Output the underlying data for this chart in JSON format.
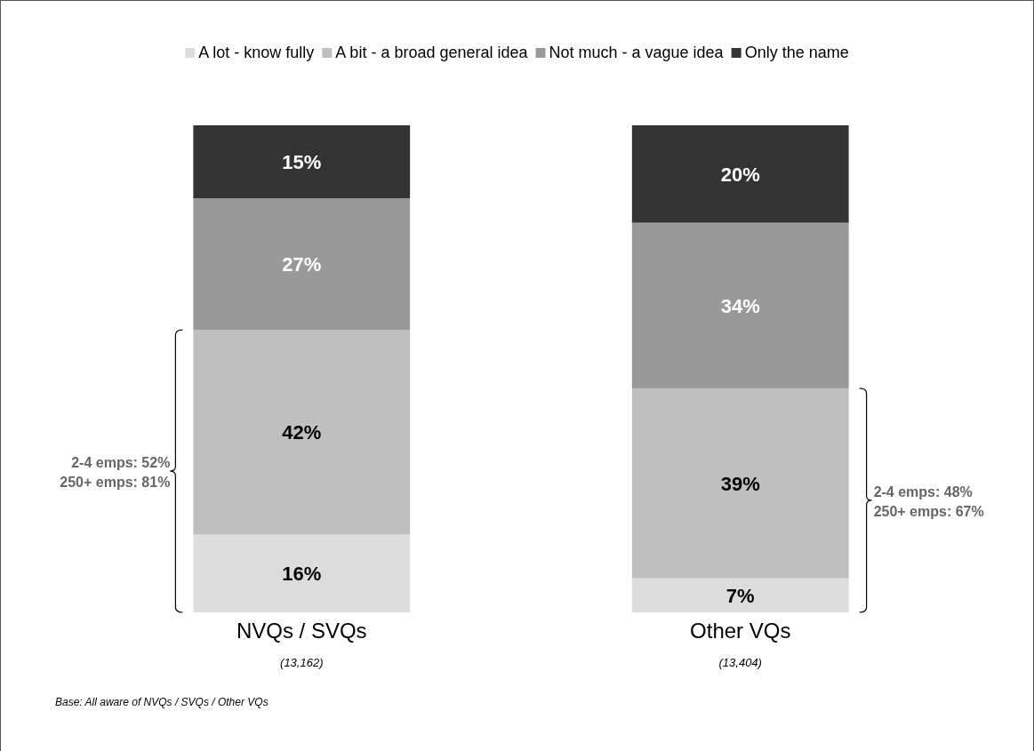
{
  "chart_data": {
    "type": "bar",
    "stacked": true,
    "legend": "top",
    "categories": [
      "NVQs / SVQs",
      "Other VQs"
    ],
    "series": [
      {
        "name": "A lot - know fully",
        "color": "#dddddd",
        "values": [
          16,
          7
        ],
        "value_labels": [
          "16%",
          "7%"
        ]
      },
      {
        "name": "A bit - a broad general idea",
        "color": "#bfbfbf",
        "values": [
          42,
          39
        ],
        "value_labels": [
          "42%",
          "39%"
        ]
      },
      {
        "name": "Not much - a vague idea",
        "color": "#999999",
        "values": [
          27,
          34
        ],
        "value_labels": [
          "27%",
          "34%"
        ]
      },
      {
        "name": "Only the name",
        "color": "#333333",
        "values": [
          15,
          20
        ],
        "value_labels": [
          "15%",
          "20%"
        ]
      }
    ],
    "annotations": [
      "(13,162)",
      "(13,404)",
      "2-4 emps: 52%\n250+ emps: 81%",
      "2-4 emps: 48%\n250+ emps: 67%",
      "Base:  All aware of  NVQs / SVQs / Other VQs"
    ]
  }
}
